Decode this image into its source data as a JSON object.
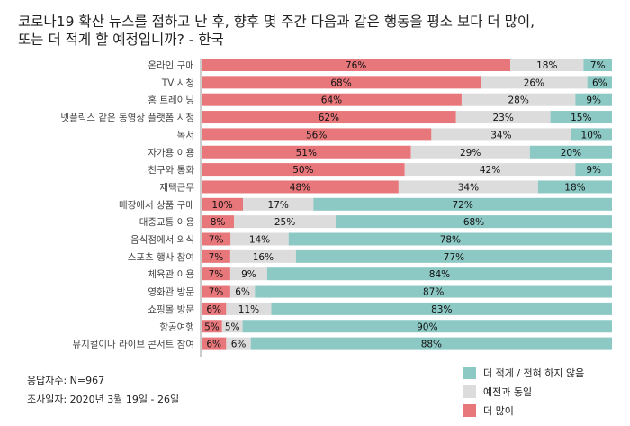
{
  "title": "코로나19 확산 뉴스를 접하고 난 후, 향후 몇 주간 다음과 같은 행동을 평소 보다 더 많이,\n또는 더 적게 할 예정입니까? - 한국",
  "footer": {
    "respondents": "응답자수: N=967",
    "survey_date": "조사일자: 2020년 3월 19일 - 26일"
  },
  "colors": {
    "more": "#E8777B",
    "same": "#DCDCDC",
    "less": "#8CC8C4"
  },
  "chart_data": {
    "type": "bar",
    "orientation": "horizontal",
    "stacked": true,
    "categories": [
      "온라인 구매",
      "TV 시청",
      "홈 트레이닝",
      "넷플릭스 같은 동영상 플랫폼 시청",
      "독서",
      "자가용 이용",
      "친구와 통화",
      "재택근무",
      "매장에서 상품 구매",
      "대중교통 이용",
      "음식점에서 외식",
      "스포츠 행사 참여",
      "체육관 이용",
      "영화관 방문",
      "쇼핑몰 방문",
      "항공여행",
      "뮤지컬이나 라이브 콘서트 참여"
    ],
    "series": [
      {
        "name": "더 많이",
        "values": [
          76,
          68,
          64,
          62,
          56,
          51,
          50,
          48,
          10,
          8,
          7,
          7,
          7,
          7,
          6,
          5,
          6
        ]
      },
      {
        "name": "예전과 동일",
        "values": [
          18,
          26,
          28,
          23,
          34,
          29,
          42,
          34,
          17,
          25,
          14,
          16,
          9,
          6,
          11,
          5,
          6
        ]
      },
      {
        "name": "더 적게 / 전혀 하지 않음",
        "values": [
          7,
          6,
          9,
          15,
          10,
          20,
          9,
          18,
          72,
          68,
          78,
          77,
          84,
          87,
          83,
          90,
          88
        ]
      }
    ],
    "xlim": [
      0,
      100
    ],
    "legend": "bottom-right"
  }
}
